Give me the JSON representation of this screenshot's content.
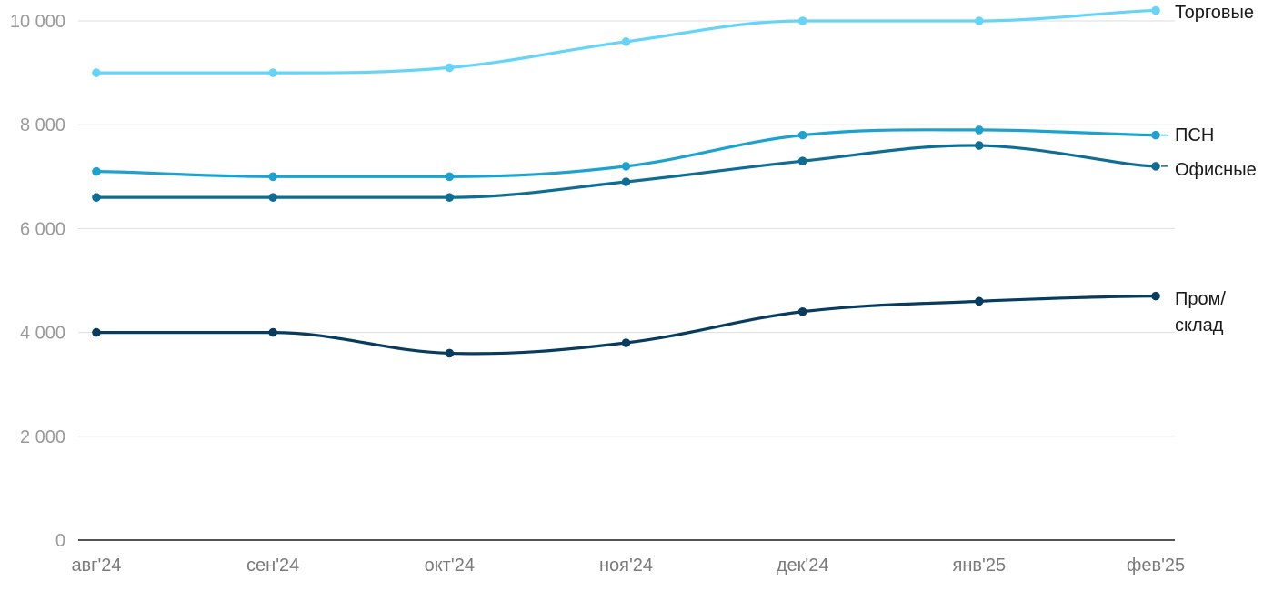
{
  "chart_data": {
    "type": "line",
    "categories": [
      "авг'24",
      "сен'24",
      "окт'24",
      "ноя'24",
      "дек'24",
      "янв'25",
      "фев'25"
    ],
    "ylim": [
      0,
      10000
    ],
    "yticks": [
      0,
      2000,
      4000,
      6000,
      8000,
      10000
    ],
    "ytick_labels": [
      "0",
      "2 000",
      "4 000",
      "6 000",
      "8 000",
      "10 000"
    ],
    "grid": true,
    "legend": "end-of-line labels",
    "series": [
      {
        "name": "Торговые",
        "label_lines": [
          "Торговые"
        ],
        "color": "#66d4f7",
        "values": [
          9000,
          9000,
          9100,
          9600,
          10000,
          10000,
          10200
        ]
      },
      {
        "name": "ПСН",
        "label_lines": [
          "ПСН"
        ],
        "color": "#1da2d0",
        "values": [
          7100,
          7000,
          7000,
          7200,
          7800,
          7900,
          7800
        ]
      },
      {
        "name": "Офисные",
        "label_lines": [
          "Офисные"
        ],
        "color": "#0f6d94",
        "values": [
          6600,
          6600,
          6600,
          6900,
          7300,
          7600,
          7200
        ]
      },
      {
        "name": "Пром/склад",
        "label_lines": [
          "Пром/",
          "склад"
        ],
        "color": "#073c5e",
        "values": [
          4000,
          4000,
          3600,
          3800,
          4400,
          4600,
          4700
        ]
      }
    ]
  }
}
